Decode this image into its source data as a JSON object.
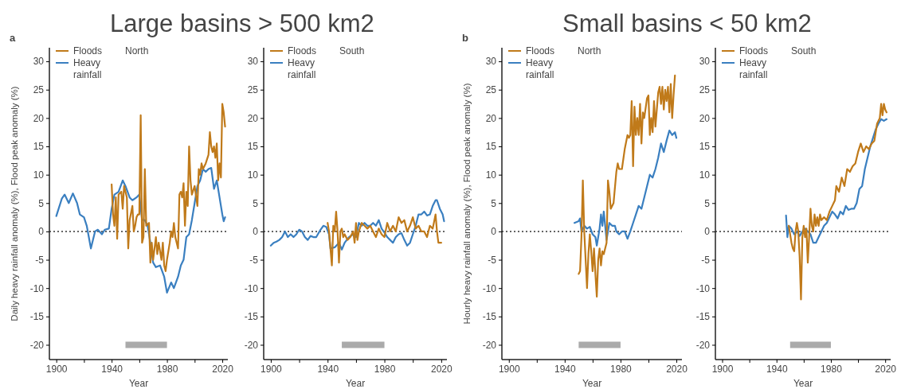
{
  "chart_data": [
    {
      "type": "line",
      "title": "Large basins > 500 km2",
      "subtitle": "North",
      "annotations": [
        "a"
      ],
      "xlabel": "Year",
      "ylabel": "Daily heavy rainfall anomaly (%), Flood peak anomaly (%)",
      "xlim": [
        1895,
        2024
      ],
      "ylim": [
        -22.6,
        32.4
      ],
      "xticks": [
        1900,
        {
          "value": 1920,
          "label": null
        },
        1940,
        {
          "value": 1960,
          "label": null
        },
        1980,
        {
          "value": 2000,
          "label": null
        },
        2020
      ],
      "yticks": [
        -20,
        -15,
        -10,
        -5,
        0,
        5,
        10,
        15,
        20,
        25,
        30
      ],
      "legend": "top left",
      "grid": false,
      "line_style": "solid",
      "ref_lines": [
        {
          "axis": "y",
          "value": 0,
          "color": "#333333",
          "line_style": "dotted"
        }
      ],
      "series": [
        {
          "color": "#aaaaaa",
          "x": [
            1950,
            1980
          ],
          "values": [
            -20,
            -20
          ]
        },
        {
          "name": "Floods",
          "color": "#c07a1a",
          "x": [
            1940,
            1941,
            1942,
            1943,
            1944,
            1945,
            1947,
            1948,
            1949,
            1950,
            1951,
            1952,
            1953,
            1955,
            1956,
            1957,
            1958,
            1959,
            1960,
            1961,
            1962,
            1963,
            1964,
            1965,
            1967,
            1968,
            1969,
            1970,
            1972,
            1973,
            1974,
            1976,
            1977,
            1978,
            1979,
            1980,
            1982,
            1983,
            1984,
            1985,
            1986,
            1988,
            1989,
            1990,
            1991,
            1992,
            1993,
            1994,
            1995,
            1996,
            1997,
            1998,
            2000,
            2002,
            2003,
            2004,
            2005,
            2006,
            2008,
            2010,
            2011,
            2012,
            2013,
            2014,
            2015,
            2016,
            2017,
            2018,
            2019,
            2020,
            2021,
            2022
          ],
          "values": [
            8.3,
            3,
            1,
            6,
            -1.3,
            6.5,
            7,
            4,
            8,
            7,
            6,
            -3,
            2,
            4.5,
            0,
            1,
            2.5,
            3,
            3,
            20.5,
            -2,
            -1,
            11,
            1,
            1.5,
            -5.5,
            -2,
            -5,
            -1,
            -4,
            -2,
            -5,
            -2,
            -6,
            -7,
            -5,
            -2,
            0,
            -1,
            1.5,
            -1,
            -3,
            6.5,
            7,
            6,
            8.5,
            1,
            7,
            4.5,
            15,
            9,
            6.5,
            8,
            4.5,
            11,
            10,
            12,
            11,
            12,
            13.5,
            17.5,
            15,
            14,
            15,
            13,
            15.5,
            9,
            12,
            9.5,
            22.5,
            21,
            18.5
          ]
        },
        {
          "name": "Heavy rainfall",
          "color": "#3a7fc0",
          "x": [
            1900,
            1904,
            1906,
            1909,
            1912,
            1915,
            1917,
            1920,
            1922,
            1925,
            1928,
            1930,
            1933,
            1935,
            1938,
            1940,
            1942,
            1945,
            1948,
            1950,
            1953,
            1955,
            1958,
            1960,
            1962,
            1964,
            1966,
            1968,
            1970,
            1972,
            1975,
            1978,
            1980,
            1983,
            1985,
            1988,
            1990,
            1992,
            1994,
            1996,
            1998,
            2000,
            2002,
            2004,
            2006,
            2008,
            2010,
            2012,
            2014,
            2016,
            2018,
            2020,
            2021,
            2022
          ],
          "values": [
            2.7,
            5.8,
            6.5,
            5,
            6.7,
            5,
            3,
            2.5,
            1,
            -3,
            0,
            0.3,
            -0.5,
            0.3,
            0.5,
            4,
            6.5,
            7,
            9,
            8,
            6,
            5.5,
            6,
            6.5,
            2,
            2,
            1,
            -2,
            -5.5,
            -6.3,
            -6,
            -8,
            -10.8,
            -9,
            -10,
            -8,
            -6,
            -5,
            -1,
            -0.5,
            2,
            5,
            8,
            9,
            11,
            10.5,
            11,
            11.2,
            7.5,
            9,
            6,
            3,
            1.8,
            2.5
          ]
        }
      ]
    },
    {
      "type": "line",
      "subtitle": "South",
      "xlabel": "Year",
      "xlim": [
        1895,
        2024
      ],
      "ylim": [
        -22.6,
        32.4
      ],
      "xticks": [
        1900,
        {
          "value": 1920,
          "label": null
        },
        1940,
        {
          "value": 1960,
          "label": null
        },
        1980,
        {
          "value": 2000,
          "label": null
        },
        2020
      ],
      "yticks": [
        -20,
        -15,
        -10,
        -5,
        0,
        5,
        10,
        15,
        20,
        25,
        30
      ],
      "legend": "top left",
      "grid": false,
      "line_style": "solid",
      "ref_lines": [
        {
          "axis": "y",
          "value": 0,
          "color": "#333333",
          "line_style": "dotted"
        }
      ],
      "series": [
        {
          "color": "#aaaaaa",
          "x": [
            1950,
            1980
          ],
          "values": [
            -20,
            -20
          ]
        },
        {
          "name": "Floods",
          "color": "#c07a1a",
          "x": [
            1940,
            1941,
            1942,
            1943,
            1944,
            1945,
            1946,
            1947,
            1948,
            1949,
            1950,
            1951,
            1952,
            1954,
            1956,
            1958,
            1959,
            1960,
            1961,
            1962,
            1964,
            1966,
            1968,
            1970,
            1972,
            1974,
            1976,
            1978,
            1980,
            1982,
            1984,
            1986,
            1988,
            1990,
            1992,
            1994,
            1996,
            1998,
            2000,
            2002,
            2004,
            2006,
            2008,
            2010,
            2012,
            2014,
            2016,
            2017,
            2018,
            2020
          ],
          "values": [
            1.5,
            0,
            -3,
            -6,
            1,
            0,
            3.5,
            0,
            -5.5,
            0,
            0.5,
            -1,
            -0.5,
            -1.5,
            -1,
            0,
            -2,
            1.5,
            -1.5,
            0,
            1.5,
            1,
            0.5,
            1,
            0,
            -1,
            0.5,
            -0.5,
            -1,
            1.5,
            0,
            1,
            0,
            2.5,
            1.5,
            2,
            0,
            1,
            2.5,
            0.5,
            1,
            0,
            0,
            -1,
            1,
            0.5,
            3,
            0,
            -2,
            -2
          ]
        },
        {
          "name": "Heavy rainfall",
          "color": "#3a7fc0",
          "x": [
            1900,
            1902,
            1904,
            1906,
            1908,
            1910,
            1912,
            1914,
            1916,
            1918,
            1920,
            1922,
            1924,
            1926,
            1928,
            1930,
            1932,
            1935,
            1937,
            1939,
            1941,
            1942,
            1945,
            1948,
            1950,
            1952,
            1955,
            1958,
            1960,
            1962,
            1964,
            1966,
            1968,
            1970,
            1972,
            1974,
            1976,
            1978,
            1980,
            1982,
            1984,
            1986,
            1988,
            1990,
            1992,
            1994,
            1996,
            1998,
            2000,
            2002,
            2004,
            2006,
            2008,
            2010,
            2012,
            2014,
            2016,
            2017,
            2019,
            2021,
            2022
          ],
          "values": [
            -2.5,
            -2,
            -1.8,
            -1.5,
            -1,
            0,
            -1,
            -0.5,
            -1,
            -0.5,
            0.3,
            0,
            -1,
            -1.5,
            -0.8,
            -1,
            -1,
            0.3,
            1,
            0.8,
            -0.5,
            -3,
            -2.8,
            -2,
            -3.2,
            -2,
            -1,
            -0.5,
            -1,
            1.5,
            1,
            1.5,
            1,
            1,
            1.5,
            1,
            2,
            0.5,
            -0.2,
            -1,
            -1.5,
            -2,
            -1,
            -0.5,
            -0.3,
            -1.5,
            -2.5,
            -2,
            -0.5,
            1,
            3,
            3,
            3.5,
            2.8,
            3,
            4.5,
            5.5,
            5.5,
            4,
            3,
            1.8
          ]
        }
      ]
    },
    {
      "type": "line",
      "title": "Small basins < 50 km2",
      "subtitle": "North",
      "annotations": [
        "b"
      ],
      "xlabel": "Year",
      "ylabel": "Hourly heavy rainfall anomaly (%), Flood peak anomaly (%)",
      "xlim": [
        1895,
        2024
      ],
      "ylim": [
        -22.6,
        32.4
      ],
      "xticks": [
        1900,
        {
          "value": 1920,
          "label": null
        },
        1940,
        {
          "value": 1960,
          "label": null
        },
        1980,
        {
          "value": 2000,
          "label": null
        },
        2020
      ],
      "yticks": [
        -20,
        -15,
        -10,
        -5,
        0,
        5,
        10,
        15,
        20,
        25,
        30
      ],
      "legend": "top left",
      "grid": false,
      "line_style": "solid",
      "ref_lines": [
        {
          "axis": "y",
          "value": 0,
          "color": "#333333",
          "line_style": "dotted"
        }
      ],
      "series": [
        {
          "color": "#aaaaaa",
          "x": [
            1950,
            1980
          ],
          "values": [
            -20,
            -20
          ]
        },
        {
          "name": "Floods",
          "color": "#c07a1a",
          "x": [
            1950,
            1951,
            1952,
            1953,
            1954,
            1955,
            1956,
            1957,
            1958,
            1959,
            1960,
            1961,
            1962,
            1963,
            1964,
            1965,
            1966,
            1967,
            1968,
            1969,
            1970,
            1971,
            1972,
            1973,
            1975,
            1977,
            1978,
            1979,
            1981,
            1983,
            1985,
            1986,
            1987,
            1988,
            1989,
            1990,
            1991,
            1992,
            1993,
            1994,
            1995,
            1996,
            1997,
            1999,
            2000,
            2001,
            2002,
            2003,
            2004,
            2005,
            2007,
            2008,
            2009,
            2010,
            2011,
            2012,
            2013,
            2014,
            2015,
            2016,
            2017,
            2018,
            2019
          ],
          "values": [
            -7.5,
            -7,
            -1,
            9,
            0,
            -5,
            -10,
            -4,
            -0.5,
            -3.5,
            -7,
            -3,
            -7.5,
            -11.5,
            -5,
            -3,
            -6,
            -3.5,
            -4,
            -3,
            -2,
            9,
            7,
            4,
            5,
            10.5,
            12,
            11,
            11,
            14.5,
            17,
            16.5,
            17,
            23,
            11.5,
            22,
            17,
            20,
            17,
            22.5,
            15.5,
            21,
            20,
            23.5,
            24,
            17,
            20,
            17.5,
            23,
            18.5,
            24.5,
            25.5,
            22.5,
            25.5,
            21.5,
            25,
            23,
            25.5,
            21,
            26,
            20,
            24,
            27.5
          ]
        },
        {
          "name": "Heavy rainfall",
          "color": "#3a7fc0",
          "x": [
            1947,
            1950,
            1951,
            1952,
            1954,
            1956,
            1958,
            1960,
            1962,
            1963,
            1965,
            1966,
            1967,
            1968,
            1970,
            1972,
            1974,
            1976,
            1977,
            1979,
            1981,
            1983,
            1985,
            1987,
            1989,
            1991,
            1993,
            1995,
            1997,
            1999,
            2001,
            2003,
            2005,
            2007,
            2009,
            2011,
            2013,
            2015,
            2017,
            2019,
            2020
          ],
          "values": [
            1.5,
            1.8,
            2.3,
            0,
            1,
            0.5,
            0.8,
            -0.5,
            -1,
            -2.5,
            0.5,
            3,
            1,
            3.5,
            -1.5,
            1.5,
            1,
            1,
            0,
            -0.5,
            0,
            0,
            -1.3,
            0,
            1.5,
            3,
            4.5,
            4,
            6,
            8,
            10,
            9.5,
            11,
            13,
            15.5,
            14,
            16,
            17.8,
            17,
            17.5,
            16.5
          ]
        }
      ]
    },
    {
      "type": "line",
      "subtitle": "South",
      "xlabel": "Year",
      "xlim": [
        1895,
        2024
      ],
      "ylim": [
        -22.6,
        32.4
      ],
      "xticks": [
        1900,
        {
          "value": 1920,
          "label": null
        },
        1940,
        {
          "value": 1960,
          "label": null
        },
        1980,
        {
          "value": 2000,
          "label": null
        },
        2020
      ],
      "yticks": [
        -20,
        -15,
        -10,
        -5,
        0,
        5,
        10,
        15,
        20,
        25,
        30
      ],
      "legend": "top left",
      "grid": false,
      "line_style": "solid",
      "ref_lines": [
        {
          "axis": "y",
          "value": 0,
          "color": "#333333",
          "line_style": "dotted"
        }
      ],
      "series": [
        {
          "color": "#aaaaaa",
          "x": [
            1950,
            1980
          ],
          "values": [
            -20,
            -20
          ]
        },
        {
          "name": "Floods",
          "color": "#c07a1a",
          "x": [
            1949,
            1951,
            1952,
            1953,
            1954,
            1955,
            1956,
            1957,
            1958,
            1959,
            1960,
            1961,
            1962,
            1963,
            1964,
            1965,
            1966,
            1967,
            1968,
            1969,
            1970,
            1971,
            1972,
            1973,
            1975,
            1977,
            1979,
            1981,
            1983,
            1984,
            1986,
            1988,
            1990,
            1992,
            1994,
            1996,
            1998,
            2000,
            2002,
            2004,
            2006,
            2008,
            2010,
            2012,
            2014,
            2016,
            2017,
            2018,
            2019,
            2020,
            2021
          ],
          "values": [
            1,
            -2,
            -3,
            -3.5,
            0,
            1.5,
            0,
            -4.5,
            -12,
            -1,
            1,
            -1,
            0.5,
            -5.5,
            -1,
            4,
            1,
            0,
            3,
            1,
            2.5,
            1,
            3,
            2,
            2.5,
            2,
            3.5,
            4.5,
            5.5,
            8,
            7,
            9.5,
            8,
            11,
            10.5,
            11.5,
            12,
            14,
            15.5,
            14,
            15,
            14.5,
            15.5,
            16,
            19,
            20,
            22.5,
            20.5,
            22.5,
            21.5,
            21
          ]
        },
        {
          "name": "Heavy rainfall",
          "color": "#3a7fc0",
          "x": [
            1947,
            1948,
            1949,
            1951,
            1953,
            1955,
            1957,
            1959,
            1961,
            1963,
            1965,
            1967,
            1969,
            1971,
            1973,
            1975,
            1977,
            1979,
            1981,
            1983,
            1985,
            1987,
            1989,
            1991,
            1993,
            1995,
            1997,
            1999,
            2001,
            2003,
            2005,
            2007,
            2009,
            2011,
            2013,
            2015,
            2017,
            2019,
            2021
          ],
          "values": [
            2.8,
            -1,
            1,
            0.5,
            -0.5,
            0,
            -0.8,
            0,
            0.5,
            0,
            -0.5,
            -2,
            -2,
            -1,
            0,
            1,
            1.5,
            2.5,
            3.5,
            3,
            2.3,
            3.5,
            3,
            4.5,
            3.8,
            4,
            4,
            5,
            7.5,
            8,
            11,
            13,
            15,
            16.5,
            18,
            19,
            19.8,
            19.5,
            19.8
          ]
        }
      ]
    }
  ]
}
